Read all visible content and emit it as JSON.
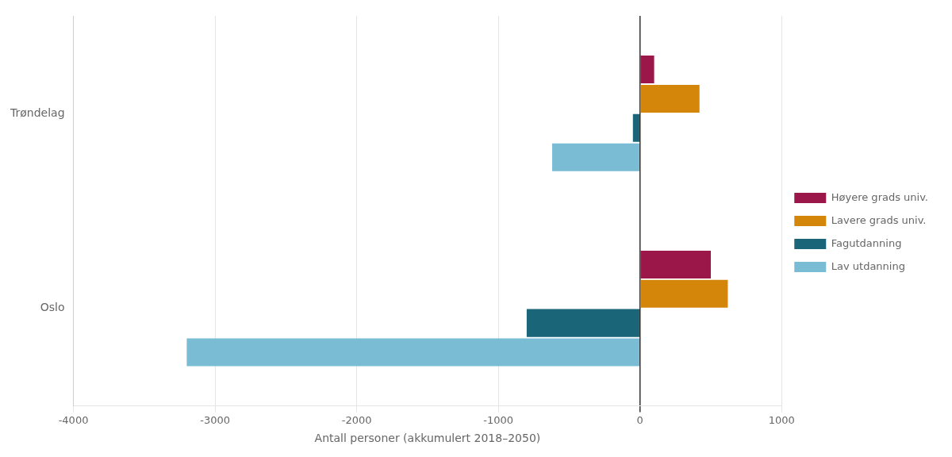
{
  "chart_data": {
    "type": "bar",
    "orientation": "horizontal",
    "categories": [
      "Trøndelag",
      "Oslo"
    ],
    "series": [
      {
        "name": "Høyere grads univ.",
        "color": "#9b1749",
        "values": [
          100,
          500
        ]
      },
      {
        "name": "Lavere grads univ.",
        "color": "#d4860b",
        "values": [
          420,
          620
        ]
      },
      {
        "name": "Fagutdanning",
        "color": "#1a6578",
        "values": [
          -50,
          -800
        ]
      },
      {
        "name": "Lav utdanning",
        "color": "#7bbcd5",
        "values": [
          -620,
          -3200
        ]
      }
    ],
    "xlabel": "Antall personer (akkumulert 2018–2050)",
    "xlim": [
      -4000,
      1000
    ],
    "xticks": [
      -4000,
      -3000,
      -2000,
      -1000,
      0,
      1000
    ],
    "grid": true,
    "legend": "right"
  }
}
